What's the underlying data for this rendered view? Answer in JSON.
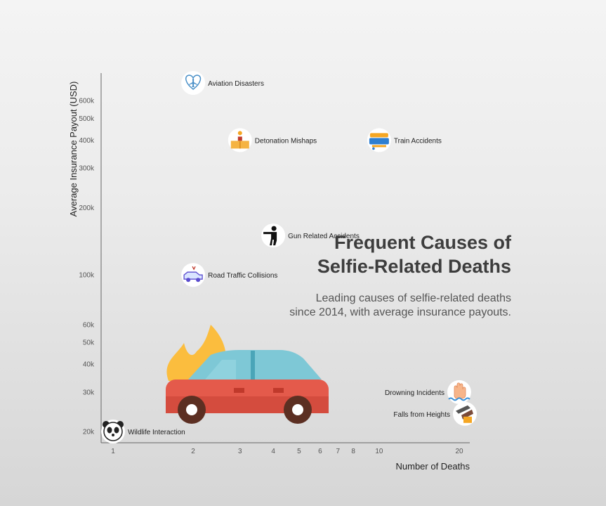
{
  "chart_data": {
    "type": "scatter",
    "title": "Frequent Causes of\nSelfie-Related Deaths",
    "subtitle": "Leading causes of selfie-related deaths since 2014, with average insurance payouts.",
    "xlabel": "Number of Deaths",
    "ylabel": "Average Insurance Payout (USD)",
    "x_scale": "log",
    "y_scale": "log",
    "xlim": [
      0.9,
      24
    ],
    "ylim": [
      18000,
      800000
    ],
    "x_ticks": [
      1,
      2,
      3,
      4,
      5,
      6,
      7,
      8,
      10,
      20
    ],
    "y_ticks": [
      {
        "value": 20000,
        "label": "20k"
      },
      {
        "value": 30000,
        "label": "30k"
      },
      {
        "value": 40000,
        "label": "40k"
      },
      {
        "value": 50000,
        "label": "50k"
      },
      {
        "value": 60000,
        "label": "60k"
      },
      {
        "value": 100000,
        "label": "100k"
      },
      {
        "value": 200000,
        "label": "200k"
      },
      {
        "value": 300000,
        "label": "300k"
      },
      {
        "value": 400000,
        "label": "400k"
      },
      {
        "value": 500000,
        "label": "500k"
      },
      {
        "value": 600000,
        "label": "600k"
      }
    ],
    "grid": false,
    "points": [
      {
        "label": "Aviation Disasters",
        "x": 2,
        "y": 720000,
        "icon": "airplane-heart-icon",
        "label_side": "right"
      },
      {
        "label": "Detonation Mishaps",
        "x": 3,
        "y": 400000,
        "icon": "explosion-box-icon",
        "label_side": "right"
      },
      {
        "label": "Train Accidents",
        "x": 10,
        "y": 400000,
        "icon": "train-icon",
        "label_side": "right"
      },
      {
        "label": "Gun Related Accidents",
        "x": 4,
        "y": 150000,
        "icon": "gunman-icon",
        "label_side": "right"
      },
      {
        "label": "Road Traffic Collisions",
        "x": 2,
        "y": 100000,
        "icon": "car-crash-icon",
        "label_side": "right"
      },
      {
        "label": "Drowning Incidents",
        "x": 20,
        "y": 30000,
        "icon": "drowning-hand-icon",
        "label_side": "left"
      },
      {
        "label": "Falls from Heights",
        "x": 21,
        "y": 24000,
        "icon": "falling-person-icon",
        "label_side": "left"
      },
      {
        "label": "Wildlife Interaction",
        "x": 1,
        "y": 20000,
        "icon": "panda-icon",
        "label_side": "right"
      }
    ],
    "decoration": "burning-car-icon",
    "colors": {
      "axis": "#666666",
      "title": "#3d3d3d",
      "subtitle": "#555555"
    }
  }
}
